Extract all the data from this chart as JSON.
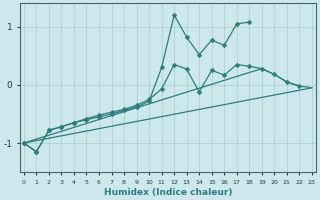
{
  "xlabel": "Humidex (Indice chaleur)",
  "bg_color": "#cce8ec",
  "grid_color": "#aacccc",
  "line_color": "#2e7d7d",
  "x_ticks": [
    0,
    1,
    2,
    3,
    4,
    5,
    6,
    7,
    8,
    9,
    10,
    11,
    12,
    13,
    14,
    15,
    16,
    17,
    18,
    19,
    20,
    21,
    22,
    23
  ],
  "y_ticks": [
    -1,
    0,
    1
  ],
  "xlim": [
    -0.3,
    23.3
  ],
  "ylim": [
    -1.5,
    1.4
  ],
  "series": [
    {
      "x": [
        0,
        1,
        2,
        3,
        4,
        5,
        6,
        7,
        8,
        9,
        10,
        11,
        12,
        13,
        14,
        15,
        16,
        17,
        18,
        19,
        20,
        21,
        22,
        23
      ],
      "y": [
        -1.0,
        -1.15,
        -0.78,
        -0.72,
        -0.65,
        -0.6,
        -0.55,
        -0.5,
        -0.44,
        -0.38,
        -0.28,
        0.3,
        1.2,
        0.82,
        0.52,
        0.77,
        0.68,
        1.05,
        1.08,
        null,
        null,
        null,
        null,
        null
      ],
      "marker": "D",
      "markersize": 2.5
    },
    {
      "x": [
        0,
        1,
        2,
        3,
        4,
        5,
        6,
        7,
        8,
        9,
        10,
        11,
        12,
        13,
        14,
        15,
        16,
        17,
        18,
        19,
        20,
        21,
        22,
        23
      ],
      "y": [
        -1.0,
        -1.15,
        -0.78,
        -0.72,
        -0.65,
        -0.58,
        -0.52,
        -0.47,
        -0.42,
        -0.35,
        -0.25,
        -0.07,
        0.35,
        0.27,
        -0.12,
        0.25,
        0.17,
        0.35,
        0.32,
        0.28,
        0.18,
        0.05,
        -0.02,
        null
      ],
      "marker": "D",
      "markersize": 2.5
    },
    {
      "x": [
        0,
        19,
        20,
        21,
        22,
        23
      ],
      "y": [
        -1.0,
        0.28,
        0.18,
        0.05,
        -0.02,
        -0.05
      ],
      "marker": null,
      "markersize": 0
    },
    {
      "x": [
        0,
        23
      ],
      "y": [
        -1.0,
        -0.05
      ],
      "marker": null,
      "markersize": 0
    }
  ]
}
